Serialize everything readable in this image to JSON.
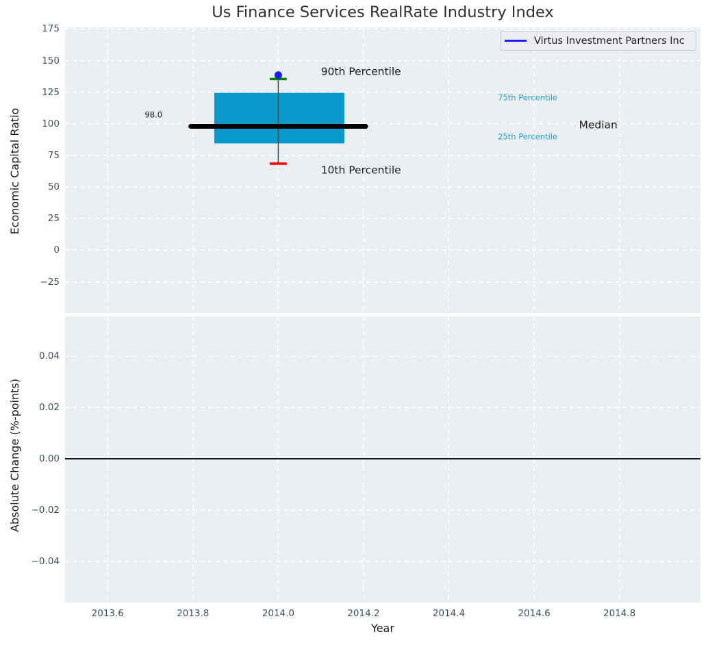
{
  "title": "Us Finance Services RealRate Industry Index",
  "legend": {
    "label": "Virtus Investment Partners Inc"
  },
  "colors": {
    "axes_bg": "#eceff1",
    "grid": "#ffffff",
    "box": "#0899cc",
    "median_line": "#000000",
    "whisker": "#4d4d4d",
    "cap_p90": "#008000",
    "cap_p10": "#ff0000",
    "marker": "#1a1aff",
    "tick_label": "#3f5066",
    "dark_text": "#1a1a1a",
    "cyan_label": "#1e9fd2",
    "zero_line": "#000000"
  },
  "chart_data": [
    {
      "type": "boxplot",
      "panel": "top",
      "ylabel": "Economic Capital Ratio",
      "xlim": [
        2013.5,
        2014.99
      ],
      "ylim": [
        -49.6,
        176.3
      ],
      "grid": true,
      "xticks": {
        "values": [
          2013.6,
          2013.8,
          2014.0,
          2014.2,
          2014.4,
          2014.6,
          2014.8
        ],
        "labels": []
      },
      "yticks": {
        "values": [
          -25,
          0,
          25,
          50,
          75,
          100,
          125,
          150,
          175
        ],
        "labels": [
          "−25",
          "0",
          "25",
          "50",
          "75",
          "100",
          "125",
          "150",
          "175"
        ]
      },
      "box": {
        "x_center": 2014.0,
        "box_x": [
          2013.85,
          2014.155
        ],
        "median_x": [
          2013.795,
          2014.205
        ],
        "cap_halfwidth": 0.02,
        "p10": 68.5,
        "p25": 84.5,
        "median": 98.0,
        "p75": 124.5,
        "p90": 135.5
      },
      "series": [
        {
          "name": "Virtus Investment Partners Inc",
          "x": [
            2014.0
          ],
          "y": [
            138.5
          ],
          "marker": "circle"
        }
      ],
      "annotations": [
        {
          "text": "90th Percentile",
          "x": 2014.1,
          "y": 141.3,
          "size": 15.5,
          "color_key": "dark_text"
        },
        {
          "text": "10th Percentile",
          "x": 2014.1,
          "y": 63.0,
          "size": 15.5,
          "color_key": "dark_text"
        },
        {
          "text": "75th Percentile",
          "x": 2014.515,
          "y": 120.5,
          "size": 11.5,
          "color_key": "cyan_label"
        },
        {
          "text": "25th Percentile",
          "x": 2014.515,
          "y": 89.5,
          "size": 11.5,
          "color_key": "cyan_label"
        },
        {
          "text": "Median",
          "x": 2014.705,
          "y": 99.0,
          "size": 15.5,
          "color_key": "dark_text"
        },
        {
          "text": "98.0",
          "x": 2013.687,
          "y": 106.7,
          "size": 11.5,
          "color_key": "dark_text"
        }
      ]
    },
    {
      "type": "line",
      "panel": "bottom",
      "xlabel": "Year",
      "ylabel": "Absolute Change (%-points)",
      "xlim": [
        2013.5,
        2014.99
      ],
      "ylim": [
        -0.056,
        0.0555
      ],
      "grid": true,
      "zero_line_y": 0.0,
      "xticks": {
        "values": [
          2013.6,
          2013.8,
          2014.0,
          2014.2,
          2014.4,
          2014.6,
          2014.8
        ],
        "labels": [
          "2013.6",
          "2013.8",
          "2014.0",
          "2014.2",
          "2014.4",
          "2014.6",
          "2014.8"
        ]
      },
      "yticks": {
        "values": [
          -0.04,
          -0.02,
          0.0,
          0.02,
          0.04
        ],
        "labels": [
          "−0.04",
          "−0.02",
          "0.00",
          "0.02",
          "0.04"
        ]
      }
    }
  ]
}
